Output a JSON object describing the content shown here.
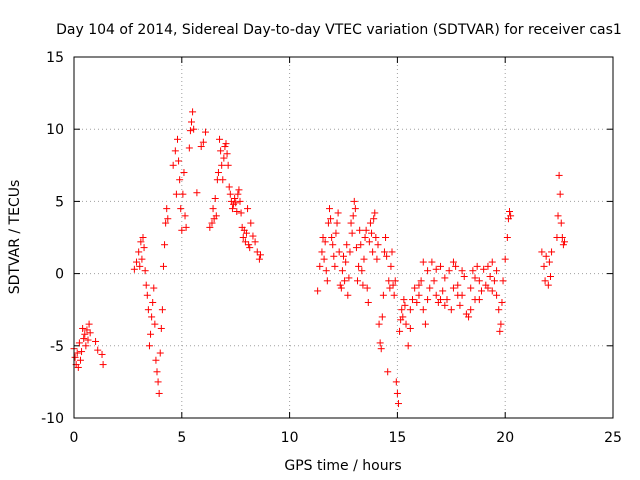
{
  "chart_data": {
    "type": "scatter",
    "title": "Day 104 of 2014, Sidereal Day-to-day VTEC variation (SDTVAR) for receiver cas1",
    "xlabel": "GPS time / hours",
    "ylabel": "SDTVAR / TECUs",
    "xlim": [
      0,
      25
    ],
    "ylim": [
      -10,
      15
    ],
    "xticks": [
      0,
      5,
      10,
      15,
      20,
      25
    ],
    "yticks": [
      -10,
      -5,
      0,
      5,
      10,
      15
    ],
    "grid": true,
    "marker": "plus",
    "colors": {
      "series": "#ff0000",
      "grid": "#a0a0a0",
      "axis": "#000000"
    },
    "series": [
      {
        "name": "SDTVAR",
        "points": [
          [
            0.0,
            -5.2
          ],
          [
            0.05,
            -5.8
          ],
          [
            0.1,
            -6.3
          ],
          [
            0.15,
            -5.5
          ],
          [
            0.2,
            -6.5
          ],
          [
            0.25,
            -4.8
          ],
          [
            0.3,
            -6.0
          ],
          [
            0.35,
            -5.4
          ],
          [
            0.4,
            -3.8
          ],
          [
            0.45,
            -4.5
          ],
          [
            0.5,
            -4.2
          ],
          [
            0.55,
            -5.0
          ],
          [
            0.6,
            -3.9
          ],
          [
            0.65,
            -4.6
          ],
          [
            0.7,
            -3.5
          ],
          [
            0.75,
            -4.1
          ],
          [
            1.0,
            -4.7
          ],
          [
            1.1,
            -5.3
          ],
          [
            1.3,
            -5.6
          ],
          [
            1.35,
            -6.3
          ],
          [
            2.8,
            0.3
          ],
          [
            2.9,
            0.8
          ],
          [
            3.0,
            1.5
          ],
          [
            3.05,
            0.5
          ],
          [
            3.1,
            2.2
          ],
          [
            3.15,
            1.0
          ],
          [
            3.2,
            2.5
          ],
          [
            3.25,
            1.8
          ],
          [
            3.3,
            0.2
          ],
          [
            3.35,
            -0.8
          ],
          [
            3.4,
            -1.5
          ],
          [
            3.45,
            -2.5
          ],
          [
            3.5,
            -5.0
          ],
          [
            3.55,
            -4.2
          ],
          [
            3.6,
            -3.0
          ],
          [
            3.65,
            -2.0
          ],
          [
            3.7,
            -1.0
          ],
          [
            3.75,
            -3.5
          ],
          [
            3.8,
            -6.0
          ],
          [
            3.85,
            -6.8
          ],
          [
            3.9,
            -7.5
          ],
          [
            3.95,
            -8.3
          ],
          [
            4.0,
            -5.5
          ],
          [
            4.05,
            -3.8
          ],
          [
            4.1,
            -2.5
          ],
          [
            4.15,
            0.5
          ],
          [
            4.2,
            2.0
          ],
          [
            4.25,
            3.5
          ],
          [
            4.3,
            4.5
          ],
          [
            4.35,
            3.8
          ],
          [
            4.6,
            7.5
          ],
          [
            4.7,
            8.5
          ],
          [
            4.75,
            5.5
          ],
          [
            4.8,
            9.3
          ],
          [
            4.85,
            7.8
          ],
          [
            4.9,
            6.5
          ],
          [
            4.95,
            4.5
          ],
          [
            5.0,
            3.0
          ],
          [
            5.05,
            5.5
          ],
          [
            5.1,
            7.0
          ],
          [
            5.15,
            4.0
          ],
          [
            5.2,
            3.2
          ],
          [
            5.35,
            8.7
          ],
          [
            5.4,
            9.9
          ],
          [
            5.45,
            10.5
          ],
          [
            5.5,
            11.2
          ],
          [
            5.55,
            10.0
          ],
          [
            5.7,
            5.6
          ],
          [
            5.9,
            8.8
          ],
          [
            6.0,
            9.1
          ],
          [
            6.1,
            9.8
          ],
          [
            6.3,
            3.2
          ],
          [
            6.4,
            3.5
          ],
          [
            6.45,
            4.5
          ],
          [
            6.5,
            3.8
          ],
          [
            6.55,
            5.2
          ],
          [
            6.6,
            4.0
          ],
          [
            6.65,
            6.5
          ],
          [
            6.7,
            7.0
          ],
          [
            6.75,
            9.3
          ],
          [
            6.8,
            8.5
          ],
          [
            6.85,
            7.5
          ],
          [
            6.9,
            6.5
          ],
          [
            6.95,
            8.0
          ],
          [
            7.0,
            8.8
          ],
          [
            7.05,
            9.0
          ],
          [
            7.1,
            8.3
          ],
          [
            7.15,
            7.5
          ],
          [
            7.2,
            6.0
          ],
          [
            7.25,
            5.5
          ],
          [
            7.3,
            5.0
          ],
          [
            7.35,
            4.5
          ],
          [
            7.4,
            4.8
          ],
          [
            7.45,
            5.2
          ],
          [
            7.5,
            4.9
          ],
          [
            7.55,
            4.3
          ],
          [
            7.6,
            5.5
          ],
          [
            7.65,
            5.8
          ],
          [
            7.7,
            5.0
          ],
          [
            7.75,
            4.2
          ],
          [
            7.8,
            3.2
          ],
          [
            7.85,
            2.5
          ],
          [
            7.9,
            3.0
          ],
          [
            7.95,
            2.2
          ],
          [
            8.0,
            2.8
          ],
          [
            8.05,
            4.5
          ],
          [
            8.1,
            2.0
          ],
          [
            8.15,
            1.8
          ],
          [
            8.2,
            3.5
          ],
          [
            8.3,
            2.6
          ],
          [
            8.4,
            2.2
          ],
          [
            8.5,
            1.5
          ],
          [
            8.6,
            1.0
          ],
          [
            8.65,
            1.3
          ],
          [
            11.3,
            -1.2
          ],
          [
            11.4,
            0.5
          ],
          [
            11.5,
            1.5
          ],
          [
            11.55,
            2.5
          ],
          [
            11.6,
            1.0
          ],
          [
            11.65,
            2.2
          ],
          [
            11.7,
            0.2
          ],
          [
            11.75,
            -0.5
          ],
          [
            11.8,
            3.5
          ],
          [
            11.85,
            4.5
          ],
          [
            11.9,
            3.8
          ],
          [
            11.95,
            2.5
          ],
          [
            12.0,
            2.0
          ],
          [
            12.05,
            1.2
          ],
          [
            12.1,
            0.5
          ],
          [
            12.15,
            2.8
          ],
          [
            12.2,
            3.5
          ],
          [
            12.25,
            4.2
          ],
          [
            12.3,
            1.5
          ],
          [
            12.35,
            -0.8
          ],
          [
            12.4,
            -1.0
          ],
          [
            12.45,
            0.2
          ],
          [
            12.5,
            1.2
          ],
          [
            12.55,
            -0.5
          ],
          [
            12.6,
            0.8
          ],
          [
            12.65,
            2.0
          ],
          [
            12.7,
            -1.5
          ],
          [
            12.75,
            -0.3
          ],
          [
            12.8,
            1.5
          ],
          [
            12.85,
            3.5
          ],
          [
            12.9,
            2.8
          ],
          [
            12.95,
            4.0
          ],
          [
            13.0,
            5.0
          ],
          [
            13.05,
            4.5
          ],
          [
            13.1,
            1.8
          ],
          [
            13.15,
            -0.5
          ],
          [
            13.2,
            0.5
          ],
          [
            13.25,
            3.0
          ],
          [
            13.3,
            2.0
          ],
          [
            13.35,
            0.2
          ],
          [
            13.4,
            -0.8
          ],
          [
            13.45,
            1.0
          ],
          [
            13.5,
            2.5
          ],
          [
            13.55,
            3.0
          ],
          [
            13.6,
            -1.0
          ],
          [
            13.65,
            -2.0
          ],
          [
            13.7,
            2.2
          ],
          [
            13.75,
            3.5
          ],
          [
            13.8,
            2.8
          ],
          [
            13.85,
            1.5
          ],
          [
            13.9,
            3.8
          ],
          [
            13.95,
            4.2
          ],
          [
            14.0,
            2.5
          ],
          [
            14.05,
            1.0
          ],
          [
            14.1,
            2.0
          ],
          [
            14.15,
            -3.5
          ],
          [
            14.2,
            -4.8
          ],
          [
            14.25,
            -5.2
          ],
          [
            14.3,
            -3.0
          ],
          [
            14.35,
            -1.5
          ],
          [
            14.4,
            1.5
          ],
          [
            14.45,
            2.5
          ],
          [
            14.5,
            1.2
          ],
          [
            14.55,
            -6.8
          ],
          [
            14.6,
            -0.5
          ],
          [
            14.65,
            -1.0
          ],
          [
            14.7,
            0.5
          ],
          [
            14.75,
            1.5
          ],
          [
            14.8,
            -0.8
          ],
          [
            14.85,
            -1.5
          ],
          [
            14.9,
            -0.5
          ],
          [
            14.95,
            -7.5
          ],
          [
            15.0,
            -8.3
          ],
          [
            15.05,
            -9.0
          ],
          [
            15.1,
            -4.0
          ],
          [
            15.15,
            -3.2
          ],
          [
            15.2,
            -2.5
          ],
          [
            15.25,
            -3.0
          ],
          [
            15.3,
            -1.8
          ],
          [
            15.35,
            -2.2
          ],
          [
            15.4,
            -3.5
          ],
          [
            15.5,
            -5.0
          ],
          [
            15.6,
            -2.5
          ],
          [
            15.7,
            -1.8
          ],
          [
            15.8,
            -1.0
          ],
          [
            15.9,
            -2.0
          ],
          [
            16.0,
            -1.5
          ],
          [
            16.1,
            -0.5
          ],
          [
            16.2,
            -2.5
          ],
          [
            16.3,
            -3.5
          ],
          [
            16.4,
            0.2
          ],
          [
            16.5,
            -1.0
          ],
          [
            16.6,
            0.8
          ],
          [
            16.7,
            -0.5
          ],
          [
            16.8,
            -1.5
          ],
          [
            16.9,
            -2.0
          ],
          [
            17.0,
            0.5
          ],
          [
            17.1,
            -1.2
          ],
          [
            17.2,
            -0.3
          ],
          [
            17.3,
            -1.8
          ],
          [
            17.4,
            0.2
          ],
          [
            17.5,
            -2.5
          ],
          [
            17.6,
            -1.0
          ],
          [
            17.7,
            0.5
          ],
          [
            17.8,
            -0.8
          ],
          [
            17.9,
            -2.2
          ],
          [
            18.0,
            -1.5
          ],
          [
            18.1,
            -0.2
          ],
          [
            18.2,
            -2.8
          ],
          [
            18.3,
            -3.0
          ],
          [
            18.4,
            -1.0
          ],
          [
            18.5,
            0.2
          ],
          [
            18.6,
            -1.8
          ],
          [
            18.7,
            0.5
          ],
          [
            18.8,
            -0.5
          ],
          [
            18.9,
            -1.2
          ],
          [
            19.0,
            0.3
          ],
          [
            19.1,
            -0.8
          ],
          [
            19.2,
            0.5
          ],
          [
            19.3,
            -0.2
          ],
          [
            19.4,
            0.8
          ],
          [
            19.5,
            -0.5
          ],
          [
            19.6,
            -1.5
          ],
          [
            19.7,
            -2.5
          ],
          [
            19.75,
            -4.0
          ],
          [
            19.8,
            -3.5
          ],
          [
            19.85,
            -2.0
          ],
          [
            19.9,
            -0.5
          ],
          [
            20.0,
            1.0
          ],
          [
            20.1,
            2.5
          ],
          [
            20.15,
            3.8
          ],
          [
            20.2,
            4.3
          ],
          [
            20.25,
            4.0
          ],
          [
            15.6,
            -3.8
          ],
          [
            16.0,
            -0.8
          ],
          [
            16.4,
            -1.8
          ],
          [
            16.8,
            0.3
          ],
          [
            17.2,
            -2.2
          ],
          [
            17.6,
            0.8
          ],
          [
            18.0,
            0.2
          ],
          [
            18.4,
            -2.5
          ],
          [
            18.8,
            -1.8
          ],
          [
            19.2,
            -1.0
          ],
          [
            19.6,
            0.2
          ],
          [
            16.2,
            0.8
          ],
          [
            17.0,
            -1.8
          ],
          [
            17.8,
            -1.5
          ],
          [
            18.6,
            -0.3
          ],
          [
            19.4,
            -1.2
          ],
          [
            21.7,
            1.5
          ],
          [
            21.8,
            0.5
          ],
          [
            21.85,
            -0.5
          ],
          [
            21.9,
            1.2
          ],
          [
            22.0,
            -0.8
          ],
          [
            22.05,
            0.8
          ],
          [
            22.1,
            -0.2
          ],
          [
            22.15,
            1.5
          ],
          [
            22.4,
            2.5
          ],
          [
            22.45,
            4.0
          ],
          [
            22.5,
            6.8
          ],
          [
            22.55,
            5.5
          ],
          [
            22.6,
            3.5
          ],
          [
            22.65,
            2.5
          ],
          [
            22.7,
            2.0
          ],
          [
            22.75,
            2.2
          ]
        ]
      }
    ]
  }
}
